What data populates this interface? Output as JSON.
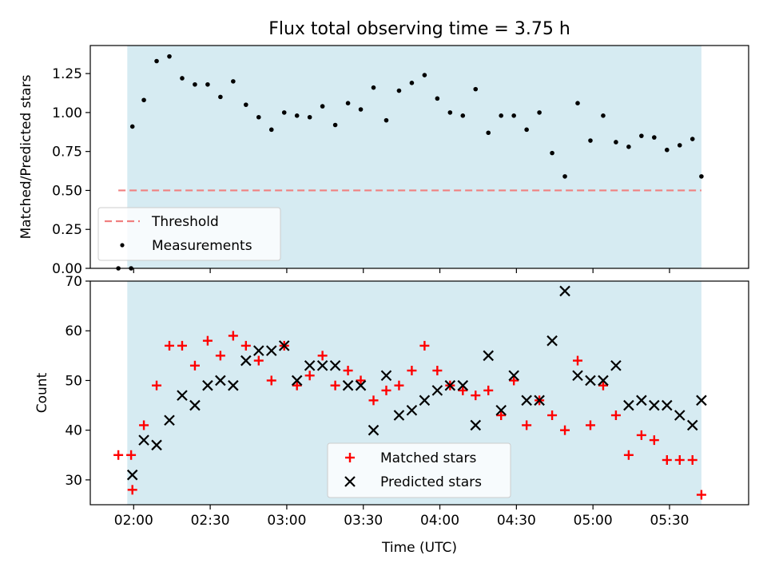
{
  "chart_data": [
    {
      "type": "scatter",
      "title": "Flux total observing time = 3.75 h",
      "xlabel": "",
      "ylabel": "Matched/Predicted stars",
      "x_unit": "minutes since 00:00 UTC",
      "xlim": [
        103,
        361
      ],
      "ylim": [
        0,
        1.43
      ],
      "yticks": [
        "0.00",
        "0.25",
        "0.50",
        "0.75",
        "1.00",
        "1.25"
      ],
      "shaded_span": [
        117.5,
        342.5
      ],
      "threshold": {
        "name": "Threshold",
        "value": 0.5,
        "x_range": [
          114,
          342.5
        ],
        "color": "#f08080"
      },
      "series": [
        {
          "name": "Measurements",
          "color": "#000000",
          "x": [
            114,
            119,
            119.5,
            124,
            129,
            134,
            139,
            144,
            149,
            154,
            159,
            164,
            169,
            174,
            179,
            184,
            189,
            194,
            199,
            204,
            209,
            214,
            219,
            224,
            229,
            234,
            239,
            244,
            249,
            254,
            259,
            264,
            269,
            274,
            279,
            284,
            289,
            294,
            299,
            304,
            309,
            314,
            319,
            324,
            329,
            334,
            339,
            342.5
          ],
          "y": [
            0,
            0,
            0.91,
            1.08,
            1.33,
            1.36,
            1.22,
            1.18,
            1.18,
            1.1,
            1.2,
            1.05,
            0.97,
            0.89,
            1.0,
            0.98,
            0.97,
            1.04,
            0.92,
            1.06,
            1.02,
            1.16,
            0.95,
            1.14,
            1.19,
            1.24,
            1.09,
            1.0,
            0.98,
            1.15,
            0.87,
            0.98,
            0.98,
            0.89,
            1.0,
            0.74,
            0.59,
            1.06,
            0.82,
            0.98,
            0.81,
            0.78,
            0.85,
            0.84,
            0.76,
            0.79,
            0.83,
            0.59
          ]
        }
      ],
      "legend": {
        "position": "lower-left",
        "entries": [
          "Threshold",
          "Measurements"
        ]
      },
      "grid": false
    },
    {
      "type": "scatter",
      "title": "",
      "xlabel": "Time (UTC)",
      "ylabel": "Count",
      "x_unit": "minutes since 00:00 UTC",
      "xlim": [
        103,
        361
      ],
      "ylim": [
        25,
        70
      ],
      "yticks": [
        "30",
        "40",
        "50",
        "60",
        "70"
      ],
      "xticks": [
        "02:00",
        "02:30",
        "03:00",
        "03:30",
        "04:00",
        "04:30",
        "05:00",
        "05:30"
      ],
      "shaded_span": [
        117.5,
        342.5
      ],
      "series": [
        {
          "name": "Matched stars",
          "marker": "plus",
          "color": "#ff0000",
          "x": [
            114,
            119,
            119.5,
            124,
            129,
            134,
            139,
            144,
            149,
            154,
            159,
            164,
            169,
            174,
            179,
            184,
            189,
            194,
            199,
            204,
            209,
            214,
            219,
            224,
            229,
            234,
            239,
            244,
            249,
            254,
            259,
            264,
            269,
            274,
            279,
            284,
            289,
            294,
            299,
            304,
            309,
            314,
            319,
            324,
            329,
            334,
            339,
            342.5
          ],
          "y": [
            35,
            35,
            28,
            41,
            49,
            57,
            57,
            53,
            58,
            55,
            59,
            57,
            54,
            50,
            57,
            49,
            51,
            55,
            49,
            52,
            50,
            46,
            48,
            49,
            52,
            57,
            52,
            49,
            48,
            47,
            48,
            43,
            50,
            41,
            46,
            43,
            40,
            54,
            41,
            49,
            43,
            35,
            39,
            38,
            34,
            34,
            34,
            27
          ]
        },
        {
          "name": "Predicted stars",
          "marker": "x",
          "color": "#000000",
          "x": [
            119.5,
            124,
            129,
            134,
            139,
            144,
            149,
            154,
            159,
            164,
            169,
            174,
            179,
            184,
            189,
            194,
            199,
            204,
            209,
            214,
            219,
            224,
            229,
            234,
            239,
            244,
            249,
            254,
            259,
            264,
            269,
            274,
            279,
            284,
            289,
            294,
            299,
            304,
            309,
            314,
            319,
            324,
            329,
            334,
            339,
            342.5
          ],
          "y": [
            31,
            38,
            37,
            42,
            47,
            45,
            49,
            50,
            49,
            54,
            56,
            56,
            57,
            50,
            53,
            53,
            53,
            49,
            49,
            40,
            51,
            43,
            44,
            46,
            48,
            49,
            49,
            41,
            55,
            44,
            51,
            46,
            46,
            58,
            68,
            51,
            50,
            50,
            53,
            45,
            46,
            45,
            45,
            43,
            41,
            46
          ]
        }
      ],
      "legend": {
        "position": "lower-center",
        "entries": [
          "Matched stars",
          "Predicted stars"
        ]
      },
      "grid": false
    }
  ],
  "colors": {
    "shade": "#add8e6",
    "threshold": "#f08080",
    "matched": "#ff0000",
    "predicted": "#000000"
  }
}
